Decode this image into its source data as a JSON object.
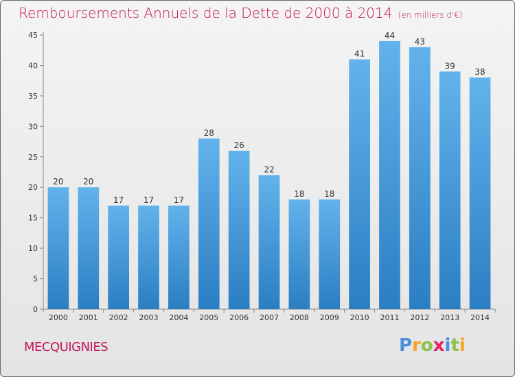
{
  "chart_data": {
    "type": "bar",
    "title": "Remboursements Annuels de la Dette de 2000 à 2014",
    "unit_note": "(en milliers d'€)",
    "categories": [
      "2000",
      "2001",
      "2002",
      "2003",
      "2004",
      "2005",
      "2006",
      "2007",
      "2008",
      "2009",
      "2010",
      "2011",
      "2012",
      "2013",
      "2014"
    ],
    "values": [
      20,
      20,
      17,
      17,
      17,
      28,
      26,
      22,
      18,
      18,
      41,
      44,
      43,
      39,
      38
    ],
    "ylim": [
      0,
      45
    ],
    "yticks": [
      0,
      5,
      10,
      15,
      20,
      25,
      30,
      35,
      40,
      45
    ],
    "grid": false,
    "xlabel": "",
    "ylabel": "",
    "bar_color": "#4a9fde",
    "bar_color_light": "#63b2ec",
    "bar_color_dark": "#2a7ec2"
  },
  "footer": {
    "commune": "MECQUIGNIES",
    "logo_letters": [
      "P",
      "r",
      "o",
      "x",
      "i",
      "t",
      "i"
    ],
    "logo_colors": [
      "#4a90d9",
      "#f5a623",
      "#8bc34a",
      "#e91e63",
      "#4a90d9",
      "#8bc34a",
      "#f5a623"
    ]
  },
  "colors": {
    "title": "#c2185b",
    "commune": "#c2185b"
  }
}
